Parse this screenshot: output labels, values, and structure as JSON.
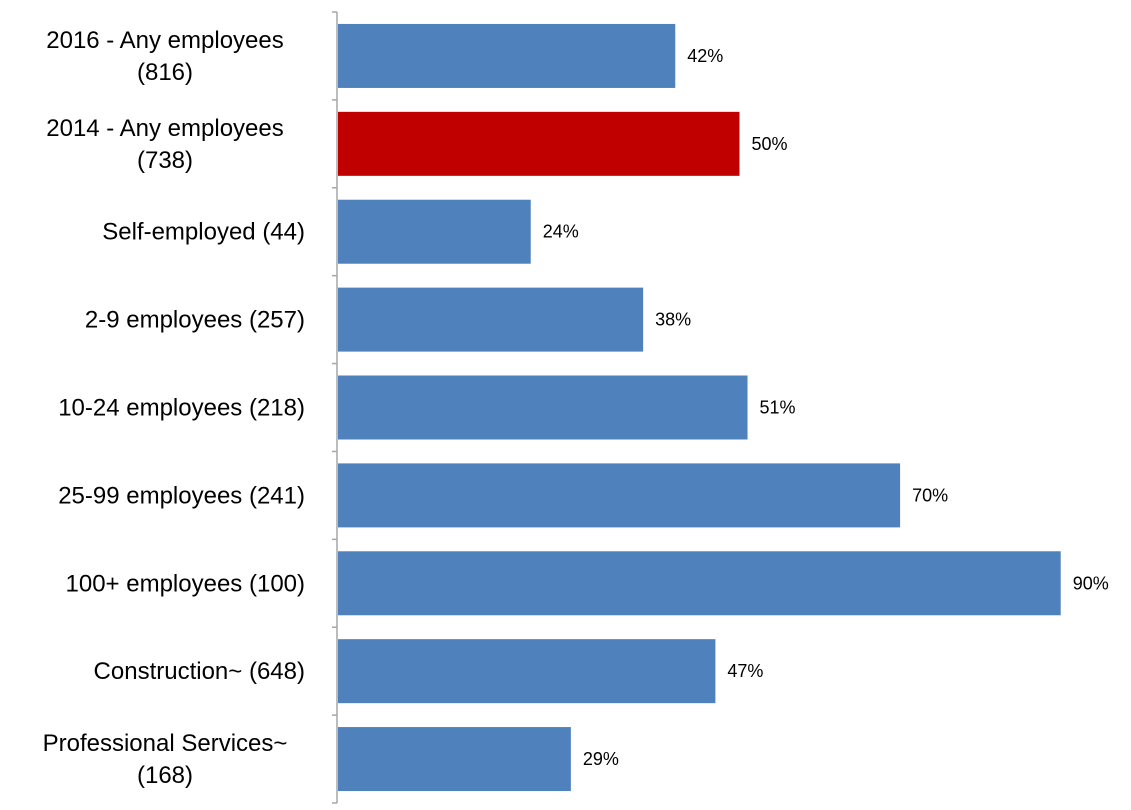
{
  "chart_data": {
    "type": "bar",
    "orientation": "horizontal",
    "title": "",
    "xlabel": "",
    "ylabel": "",
    "xlim": [
      0,
      100
    ],
    "grid": false,
    "legend": "none",
    "categories": [
      [
        "2016 - Any employees",
        "(816)"
      ],
      [
        "2014 - Any employees",
        "(738)"
      ],
      [
        "Self-employed (44)"
      ],
      [
        "2-9 employees (257)"
      ],
      [
        "10-24 employees (218)"
      ],
      [
        "25-99 employees (241)"
      ],
      [
        "100+ employees (100)"
      ],
      [
        "Construction~ (648)"
      ],
      [
        "Professional Services~",
        "(168)"
      ]
    ],
    "values": [
      42,
      50,
      24,
      38,
      51,
      70,
      90,
      47,
      29
    ],
    "value_labels": [
      "42%",
      "50%",
      "24%",
      "38%",
      "51%",
      "70%",
      "90%",
      "47%",
      "29%"
    ],
    "colors": {
      "bar": "#4F81BD",
      "highlight": "#C00000",
      "axis": "#A6A6A6",
      "text": "#000000"
    },
    "highlight_index": 1
  }
}
